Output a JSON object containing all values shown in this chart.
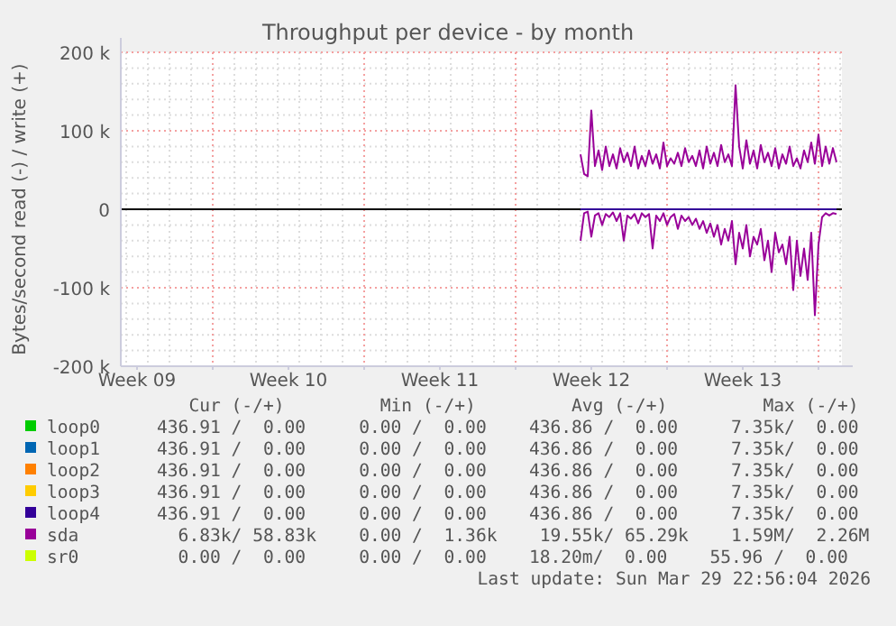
{
  "chart_data": {
    "type": "line",
    "title": "Throughput per device - by month",
    "ylabel": "Bytes/second read (-) / write (+)",
    "x": [
      "2026-03-19T00:00",
      "2026-03-19T04:00",
      "2026-03-19T08:00",
      "2026-03-19T12:00",
      "2026-03-19T16:00",
      "2026-03-19T20:00",
      "2026-03-20T00:00",
      "2026-03-20T04:00",
      "2026-03-20T08:00",
      "2026-03-20T12:00",
      "2026-03-20T16:00",
      "2026-03-20T20:00",
      "2026-03-21T00:00",
      "2026-03-21T04:00",
      "2026-03-21T08:00",
      "2026-03-21T12:00",
      "2026-03-21T16:00",
      "2026-03-21T20:00",
      "2026-03-22T00:00",
      "2026-03-22T04:00",
      "2026-03-22T08:00",
      "2026-03-22T12:00",
      "2026-03-22T16:00",
      "2026-03-22T20:00",
      "2026-03-23T00:00",
      "2026-03-23T04:00",
      "2026-03-23T08:00",
      "2026-03-23T12:00",
      "2026-03-23T16:00",
      "2026-03-23T20:00",
      "2026-03-24T00:00",
      "2026-03-24T04:00",
      "2026-03-24T08:00",
      "2026-03-24T12:00",
      "2026-03-24T16:00",
      "2026-03-24T20:00",
      "2026-03-25T00:00",
      "2026-03-25T04:00",
      "2026-03-25T08:00",
      "2026-03-25T12:00",
      "2026-03-25T16:00",
      "2026-03-25T20:00",
      "2026-03-26T00:00",
      "2026-03-26T04:00",
      "2026-03-26T08:00",
      "2026-03-26T12:00",
      "2026-03-26T16:00",
      "2026-03-26T20:00",
      "2026-03-27T00:00",
      "2026-03-27T04:00",
      "2026-03-27T08:00",
      "2026-03-27T12:00",
      "2026-03-27T16:00",
      "2026-03-27T20:00",
      "2026-03-28T00:00",
      "2026-03-28T04:00",
      "2026-03-28T08:00",
      "2026-03-28T12:00",
      "2026-03-28T16:00",
      "2026-03-28T20:00",
      "2026-03-29T00:00",
      "2026-03-29T04:00",
      "2026-03-29T08:00",
      "2026-03-29T12:00",
      "2026-03-29T16:00",
      "2026-03-29T20:00",
      "2026-03-30T00:00",
      "2026-03-30T04:00",
      "2026-03-30T08:00",
      "2026-03-30T12:00",
      "2026-03-30T16:00",
      "2026-03-30T20:00"
    ],
    "xlim": [
      "2026-02-25T18:00",
      "2026-03-31T02:00"
    ],
    "xticks": [
      {
        "value": "2026-02-26T12:00",
        "label": "Week 09"
      },
      {
        "value": "2026-03-05T12:00",
        "label": "Week 10"
      },
      {
        "value": "2026-03-12T12:00",
        "label": "Week 11"
      },
      {
        "value": "2026-03-19T12:00",
        "label": "Week 12"
      },
      {
        "value": "2026-03-26T12:00",
        "label": "Week 13"
      },
      {
        "value": "2026-03-02",
        "label": null
      },
      {
        "value": "2026-03-09",
        "label": null
      },
      {
        "value": "2026-03-16",
        "label": null
      },
      {
        "value": "2026-03-23",
        "label": null
      },
      {
        "value": "2026-03-30",
        "label": null
      }
    ],
    "ylim": [
      -200000,
      200000
    ],
    "yticks": [
      {
        "value": -200000,
        "label": "-200 k"
      },
      {
        "value": -100000,
        "label": "-100 k"
      },
      0,
      {
        "value": 100000,
        "label": "100 k"
      },
      {
        "value": 200000,
        "label": "200 k"
      }
    ],
    "grid": true,
    "legend": "bottom",
    "marker": "none",
    "line_style": "solid",
    "series": [
      {
        "name": "loop0",
        "color": "#00cc00",
        "values": [
          null,
          null,
          null,
          null,
          null,
          null,
          null,
          null,
          null,
          null,
          null,
          null,
          null,
          null,
          null,
          null,
          null,
          null,
          null,
          null,
          null,
          null,
          null,
          null,
          null,
          null,
          null,
          null,
          null,
          null,
          null,
          null,
          null,
          null,
          null,
          null,
          null,
          null,
          null,
          null,
          null,
          null,
          null,
          null,
          null,
          null,
          null,
          null,
          null,
          null,
          null,
          null,
          null,
          null,
          null,
          null,
          null,
          null,
          null,
          null,
          null,
          null,
          null,
          null,
          null,
          null,
          null,
          null,
          null,
          null,
          null,
          null
        ]
      },
      {
        "name": "loop1",
        "color": "#0066b3",
        "values": [
          null,
          null,
          null,
          null,
          null,
          null,
          null,
          null,
          null,
          null,
          null,
          null,
          null,
          null,
          null,
          null,
          null,
          null,
          null,
          null,
          null,
          null,
          null,
          null,
          null,
          null,
          null,
          null,
          null,
          null,
          null,
          null,
          null,
          null,
          null,
          null,
          null,
          null,
          null,
          null,
          null,
          null,
          null,
          null,
          null,
          null,
          null,
          null,
          null,
          null,
          null,
          null,
          null,
          null,
          null,
          null,
          null,
          null,
          null,
          null,
          null,
          null,
          null,
          null,
          null,
          null,
          null,
          null,
          null,
          null,
          null,
          null
        ]
      },
      {
        "name": "loop2",
        "color": "#ff8000",
        "values": [
          null,
          null,
          null,
          null,
          null,
          null,
          null,
          null,
          null,
          null,
          null,
          null,
          null,
          null,
          null,
          null,
          null,
          null,
          null,
          null,
          null,
          null,
          null,
          null,
          null,
          null,
          null,
          null,
          null,
          null,
          null,
          null,
          null,
          null,
          null,
          null,
          null,
          null,
          null,
          null,
          null,
          null,
          null,
          null,
          null,
          null,
          null,
          null,
          null,
          null,
          null,
          null,
          null,
          null,
          null,
          null,
          null,
          null,
          null,
          null,
          null,
          null,
          null,
          null,
          null,
          null,
          null,
          null,
          null,
          null,
          null,
          null
        ]
      },
      {
        "name": "loop3",
        "color": "#ffcc00",
        "values": [
          null,
          null,
          null,
          null,
          null,
          null,
          null,
          null,
          null,
          null,
          null,
          null,
          null,
          null,
          null,
          null,
          null,
          null,
          null,
          null,
          null,
          null,
          null,
          null,
          null,
          null,
          null,
          null,
          null,
          null,
          null,
          null,
          null,
          null,
          null,
          null,
          null,
          null,
          null,
          null,
          null,
          null,
          null,
          null,
          null,
          null,
          null,
          null,
          null,
          null,
          null,
          null,
          null,
          null,
          null,
          null,
          null,
          null,
          null,
          null,
          null,
          null,
          null,
          null,
          null,
          null,
          null,
          null,
          null,
          null,
          null,
          null
        ]
      },
      {
        "name": "sda",
        "color": "#990099",
        "values": [
          70000,
          45000,
          42000,
          126000,
          55000,
          75000,
          50000,
          80000,
          55000,
          70000,
          52000,
          78000,
          60000,
          72000,
          55000,
          80000,
          52000,
          68000,
          55000,
          75000,
          58000,
          70000,
          52000,
          85000,
          55000,
          65000,
          58000,
          72000,
          55000,
          78000,
          60000,
          68000,
          55000,
          75000,
          52000,
          80000,
          58000,
          72000,
          55000,
          82000,
          60000,
          70000,
          55000,
          158000,
          80000,
          52000,
          88000,
          58000,
          75000,
          52000,
          82000,
          60000,
          72000,
          55000,
          78000,
          52000,
          70000,
          58000,
          80000,
          55000,
          65000,
          52000,
          75000,
          60000,
          85000,
          58000,
          95000,
          55000,
          80000,
          58000,
          78000,
          60000
        ]
      },
      {
        "color": "#990099",
        "values": [
          -40000,
          -5000,
          -3000,
          -35000,
          -8000,
          -5000,
          -20000,
          -6000,
          -10000,
          -4000,
          -15000,
          -5000,
          -40000,
          -8000,
          -12000,
          -6000,
          -18000,
          -5000,
          -10000,
          -6000,
          -50000,
          -8000,
          -15000,
          -5000,
          -20000,
          -10000,
          -6000,
          -25000,
          -8000,
          -15000,
          -10000,
          -20000,
          -12000,
          -25000,
          -15000,
          -30000,
          -18000,
          -35000,
          -20000,
          -45000,
          -25000,
          -40000,
          -15000,
          -70000,
          -30000,
          -50000,
          -20000,
          -60000,
          -35000,
          -45000,
          -25000,
          -65000,
          -40000,
          -80000,
          -30000,
          -55000,
          -45000,
          -70000,
          -35000,
          -103000,
          -40000,
          -85000,
          -50000,
          -90000,
          -30000,
          -135000,
          -45000,
          -10000,
          -5000,
          -8000,
          -5000,
          -6000
        ]
      },
      {
        "name": "loop4",
        "color": "#330099",
        "x": [
          "2026-03-19T00:00",
          "2026-03-30T20:00"
        ],
        "values": [
          0,
          0
        ]
      },
      {
        "name": "sr0",
        "color": "#ccff00",
        "values": [
          null,
          null,
          null,
          null,
          null,
          null,
          null,
          null,
          null,
          null,
          null,
          null,
          null,
          null,
          null,
          null,
          null,
          null,
          null,
          null,
          null,
          null,
          null,
          null,
          null,
          null,
          null,
          null,
          null,
          null,
          null,
          null,
          null,
          null,
          null,
          null,
          null,
          null,
          null,
          null,
          null,
          null,
          null,
          null,
          null,
          null,
          null,
          null,
          null,
          null,
          null,
          null,
          null,
          null,
          null,
          null,
          null,
          null,
          null,
          null,
          null,
          null,
          null,
          null,
          null,
          null,
          null,
          null,
          null,
          null,
          null,
          null
        ]
      }
    ],
    "annotations": [
      "   Cur (-/+)         Min (-/+)         Avg (-/+)         Max (-/+)",
      "436.91 /  0.00     0.00 /  0.00    436.86 /  0.00     7.35k/  0.00",
      "436.91 /  0.00     0.00 /  0.00    436.86 /  0.00     7.35k/  0.00",
      "436.91 /  0.00     0.00 /  0.00    436.86 /  0.00     7.35k/  0.00",
      "436.91 /  0.00     0.00 /  0.00    436.86 /  0.00     7.35k/  0.00",
      "436.91 /  0.00     0.00 /  0.00    436.86 /  0.00     7.35k/  0.00",
      "  6.83k/ 58.83k    0.00 /  1.36k    19.55k/ 65.29k    1.59M/  2.26M",
      "  0.00 /  0.00     0.00 /  0.00    18.20m/  0.00    55.96 /  0.00",
      "Last update: Sun Mar 29 22:56:04 2026"
    ]
  }
}
